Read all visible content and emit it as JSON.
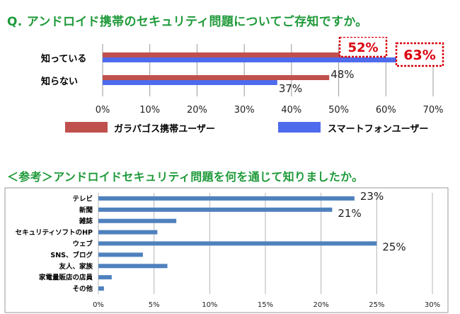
{
  "titles": {
    "main": "Q. アンドロイド携帯のセキュリティ問題についてご存知ですか。",
    "reference": "＜参考＞アンドロイドセキュリティ問題を何を通じて知りましたか。"
  },
  "colors": {
    "heading": "#1f9a3a",
    "feature_phone_bar": "#c0504d",
    "smartphone_bar": "#4f6bed",
    "reference_bar": "#4f81bd",
    "callout_border": "#d9000d",
    "callout_text": "#d9000d"
  },
  "chart_data": [
    {
      "type": "bar",
      "orientation": "horizontal",
      "categories": [
        "知っている",
        "知らない"
      ],
      "series": [
        {
          "name": "ガラパゴス携帯ユーザー",
          "values": [
            52,
            48
          ],
          "labels": [
            "52%",
            "48%"
          ]
        },
        {
          "name": "スマートフォンユーザー",
          "values": [
            63,
            37
          ],
          "labels": [
            "63%",
            "37%"
          ]
        }
      ],
      "xlim": [
        0,
        70
      ],
      "xticks": [
        0,
        10,
        20,
        30,
        40,
        50,
        60,
        70
      ],
      "xtick_labels": [
        "0%",
        "10%",
        "20%",
        "30%",
        "40%",
        "50%",
        "60%",
        "70%"
      ],
      "highlighted_labels": [
        "52%",
        "63%"
      ],
      "legend_position": "bottom",
      "grid": "vertical"
    },
    {
      "type": "bar",
      "orientation": "horizontal",
      "categories": [
        "テレビ",
        "新聞",
        "雑誌",
        "セキュリティソフトのHP",
        "ウェブ",
        "SNS、ブログ",
        "友人、家族",
        "家電量販店の店員",
        "その他"
      ],
      "values": [
        23,
        21,
        7,
        5.3,
        25,
        4,
        6.2,
        1.2,
        0.5
      ],
      "value_labels": [
        "23%",
        "21%",
        "",
        "",
        "25%",
        "",
        "",
        "",
        ""
      ],
      "xlim": [
        0,
        30
      ],
      "xticks": [
        0,
        5,
        10,
        15,
        20,
        25,
        30
      ],
      "xtick_labels": [
        "0%",
        "5%",
        "10%",
        "15%",
        "20%",
        "25%",
        "30%"
      ],
      "grid": "vertical",
      "frame": true
    }
  ]
}
